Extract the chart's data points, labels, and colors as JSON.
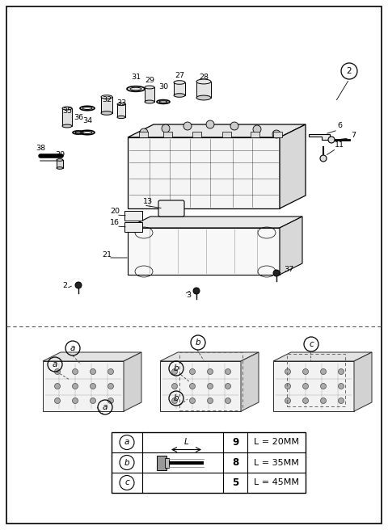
{
  "bg_color": "#ffffff",
  "line_color": "#000000",
  "fig_width": 4.8,
  "fig_height": 6.56,
  "dpi": 100,
  "table_data": [
    {
      "label": "a",
      "count": "9",
      "length": "L = 20MM"
    },
    {
      "label": "b",
      "count": "8",
      "length": "L = 35MM"
    },
    {
      "label": "c",
      "count": "5",
      "length": "L = 45MM"
    }
  ]
}
